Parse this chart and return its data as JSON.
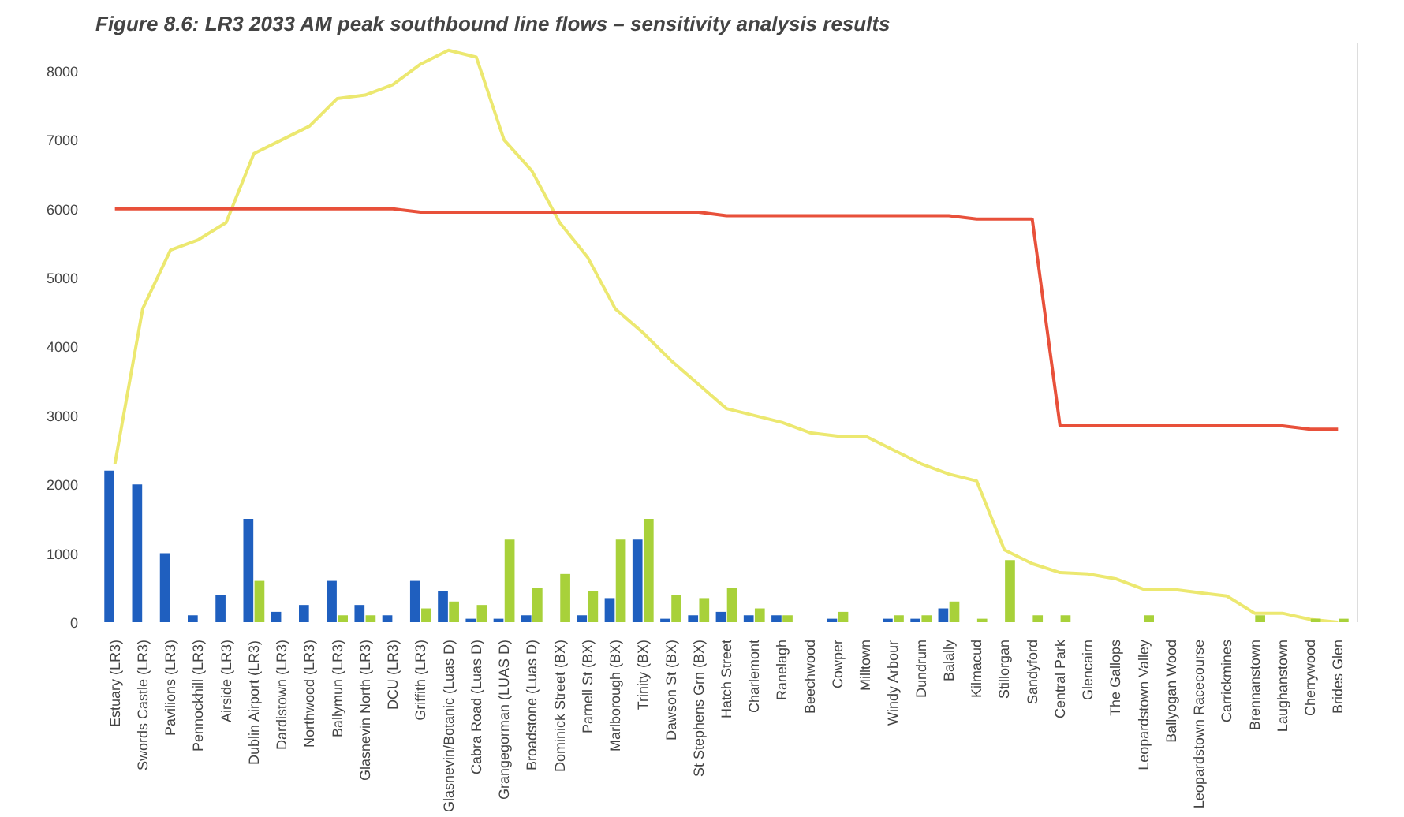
{
  "chart_data": {
    "type": "bar",
    "title": "Figure 8.6: LR3 2033 AM peak southbound line flows – sensitivity analysis results",
    "categories": [
      "Estuary (LR3)",
      "Swords Castle (LR3)",
      "Pavilions (LR3)",
      "Pennockhill (LR3)",
      "Airside (LR3)",
      "Dublin Airport (LR3)",
      "Dardistown (LR3)",
      "Northwood (LR3)",
      "Ballymun (LR3)",
      "Glasnevin North (LR3)",
      "DCU (LR3)",
      "Griffith (LR3)",
      "Glasnevin/Botanic (Luas D)",
      "Cabra Road (Luas D)",
      "Grangegorman (LUAS D)",
      "Broadstone (Luas D)",
      "Dominick Street (BX)",
      "Parnell St (BX)",
      "Marlborough (BX)",
      "Trinity (BX)",
      "Dawson St (BX)",
      "St Stephens Grn (BX)",
      "Hatch Street",
      "Charlemont",
      "Ranelagh",
      "Beechwood",
      "Cowper",
      "Milltown",
      "Windy Arbour",
      "Dundrum",
      "Balally",
      "Kilmacud",
      "Stillorgan",
      "Sandyford",
      "Central Park",
      "Glencairn",
      "The Gallops",
      "Leopardstown Valley",
      "Ballyogan Wood",
      "Leopardstown Racecourse",
      "Carrickmines",
      "Brennanstown",
      "Laughanstown",
      "Cherrywood",
      "Brides Glen"
    ],
    "series": [
      {
        "color": "#1f5fbf",
        "values": [
          2200,
          2000,
          1000,
          100,
          400,
          1500,
          150,
          250,
          600,
          250,
          100,
          600,
          450,
          50,
          50,
          100,
          0,
          100,
          350,
          1200,
          50,
          100,
          150,
          100,
          100,
          0,
          50,
          0,
          50,
          50,
          200,
          0,
          0,
          0,
          0,
          0,
          0,
          0,
          0,
          0,
          0,
          0,
          0,
          0,
          0
        ]
      },
      {
        "color": "#a8d13a",
        "values": [
          0,
          0,
          0,
          0,
          0,
          600,
          0,
          0,
          100,
          100,
          0,
          200,
          300,
          250,
          1200,
          500,
          700,
          450,
          1200,
          1500,
          400,
          350,
          500,
          200,
          100,
          0,
          150,
          0,
          100,
          100,
          300,
          50,
          900,
          100,
          100,
          0,
          0,
          100,
          0,
          0,
          0,
          100,
          0,
          50,
          50
        ]
      },
      {
        "type": "line",
        "color": "#ece870",
        "values": [
          2300,
          4550,
          5400,
          5550,
          5800,
          6800,
          7000,
          7200,
          7600,
          7650,
          7800,
          8100,
          8300,
          8200,
          7000,
          6550,
          5800,
          5300,
          4550,
          4200,
          3800,
          3450,
          3100,
          3000,
          2900,
          2750,
          2700,
          2700,
          2500,
          2300,
          2150,
          2050,
          1050,
          850,
          720,
          700,
          630,
          480,
          480,
          430,
          380,
          130,
          130,
          40,
          0
        ]
      },
      {
        "type": "line",
        "color": "#e8503a",
        "values": [
          6000,
          6000,
          6000,
          6000,
          6000,
          6000,
          6000,
          6000,
          6000,
          6000,
          6000,
          5950,
          5950,
          5950,
          5950,
          5950,
          5950,
          5950,
          5950,
          5950,
          5950,
          5950,
          5900,
          5900,
          5900,
          5900,
          5900,
          5900,
          5900,
          5900,
          5900,
          5850,
          5850,
          5850,
          2850,
          2850,
          2850,
          2850,
          2850,
          2850,
          2850,
          2850,
          2850,
          2800,
          2800
        ]
      }
    ],
    "ylim": [
      0,
      8400
    ],
    "yticks": [
      0,
      1000,
      2000,
      3000,
      4000,
      5000,
      6000,
      7000,
      8000
    ]
  }
}
